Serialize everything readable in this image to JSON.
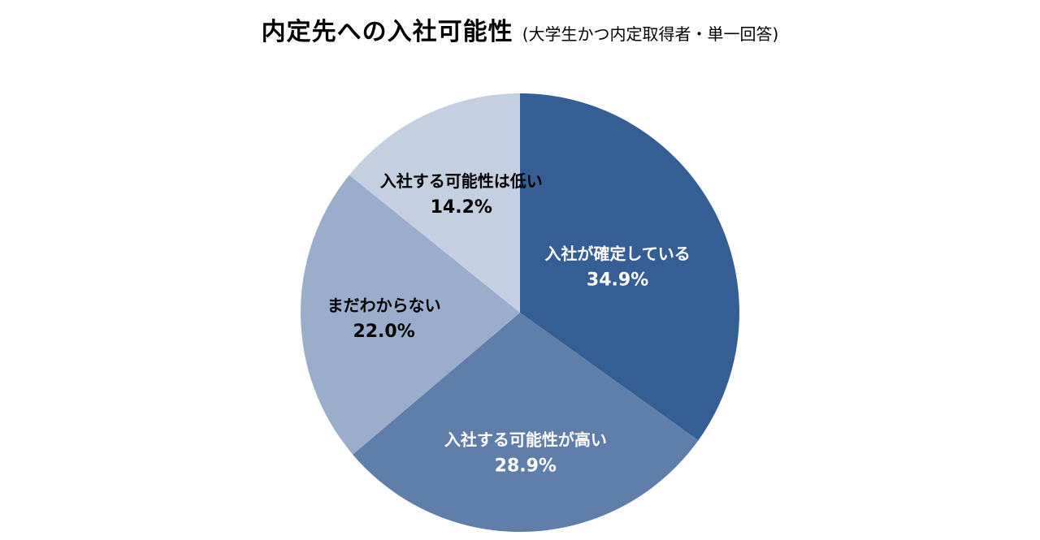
{
  "title": "内定先への入社可能性",
  "subtitle": "(大学生かつ内定取得者・単一回答)",
  "chart_data": {
    "type": "pie",
    "start": "12 o'clock",
    "direction": "clockwise",
    "legend": "none",
    "slices": [
      {
        "label": "入社が確定している",
        "value": 34.9,
        "value_label": "34.9%",
        "color": "#355e95",
        "text_color": "#ffffff"
      },
      {
        "label": "入社する可能性が高い",
        "value": 28.9,
        "value_label": "28.9%",
        "color": "#5f7ea9",
        "text_color": "#ffffff"
      },
      {
        "label": "まだわからない",
        "value": 22.0,
        "value_label": "22.0%",
        "color": "#9aaecb",
        "text_color": "#000000"
      },
      {
        "label": "入社する可能性は低い",
        "value": 14.2,
        "value_label": "14.2%",
        "color": "#c4cfe1",
        "text_color": "#000000"
      }
    ]
  }
}
